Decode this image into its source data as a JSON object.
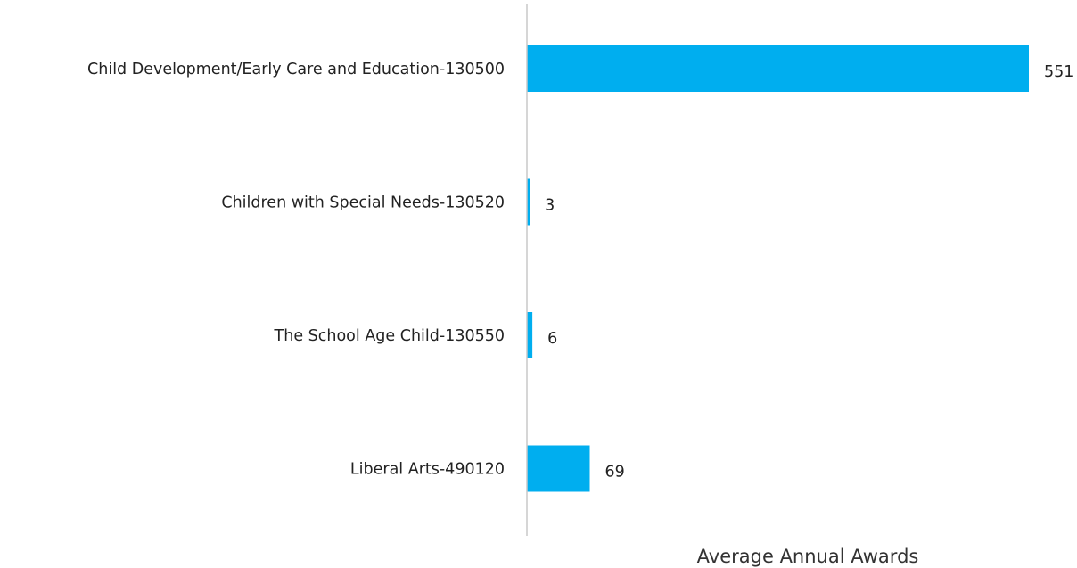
{
  "chart_data": {
    "type": "bar",
    "orientation": "horizontal",
    "categories": [
      "Child Development/Early Care and Education-130500",
      "Children with Special Needs-130520",
      "The School Age Child-130550",
      "Liberal Arts-490120"
    ],
    "values": [
      551,
      3,
      6,
      69
    ],
    "value_labels": [
      "551",
      "3",
      "6",
      "69"
    ],
    "title": "",
    "xlabel": "Average Annual Awards",
    "ylabel": "",
    "xlim": [
      0,
      551
    ],
    "grid": false,
    "legend": "none",
    "colors": {
      "bar": "#00AEEF",
      "axis_line": "#c8c8c8",
      "text": "#222222"
    }
  }
}
